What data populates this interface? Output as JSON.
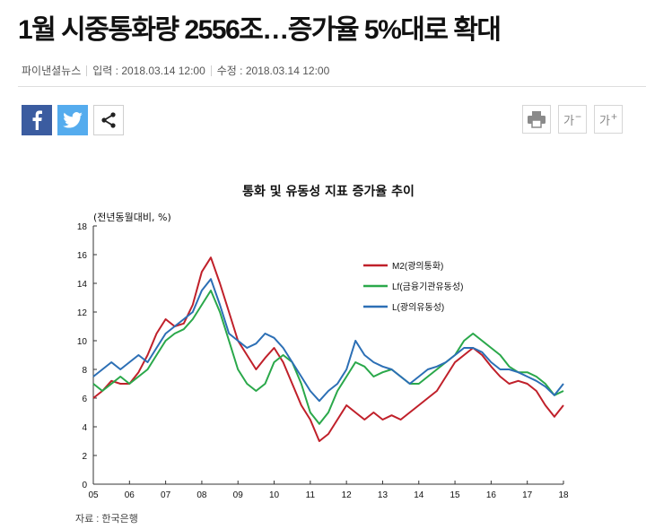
{
  "article": {
    "title": "1월 시중통화량 2556조…증가율 5%대로 확대",
    "publisher": "파이낸셜뉴스",
    "published": "입력 : 2018.03.14 12:00",
    "modified": "수정 : 2018.03.14 12:00"
  },
  "share": {
    "facebook_icon": "facebook-icon",
    "twitter_icon": "twitter-icon",
    "share_icon": "share-icon"
  },
  "tools": {
    "print_icon": "printer-icon",
    "font_smaller_label": "가",
    "font_smaller_sign": "−",
    "font_larger_label": "가",
    "font_larger_sign": "+"
  },
  "source_label": "자료 : 한국은행",
  "chart_data": {
    "type": "line",
    "title": "통화 및 유동성 지표 증가율 추이",
    "ylabel": "(전년동월대비, %)",
    "ylim": [
      0,
      18
    ],
    "yticks": [
      0,
      2,
      4,
      6,
      8,
      10,
      12,
      14,
      16,
      18
    ],
    "xticks": [
      "05",
      "06",
      "07",
      "08",
      "09",
      "10",
      "11",
      "12",
      "13",
      "14",
      "15",
      "16",
      "17",
      "18"
    ],
    "xlim": [
      2005.0,
      2018.0
    ],
    "grid": false,
    "legend_position": "top-right",
    "series": [
      {
        "name": "M2(광의통화)",
        "color": "#c0202a",
        "x": [
          2005.0,
          2005.25,
          2005.5,
          2005.75,
          2006.0,
          2006.25,
          2006.5,
          2006.75,
          2007.0,
          2007.25,
          2007.5,
          2007.75,
          2008.0,
          2008.25,
          2008.5,
          2008.75,
          2009.0,
          2009.25,
          2009.5,
          2009.75,
          2010.0,
          2010.25,
          2010.5,
          2010.75,
          2011.0,
          2011.25,
          2011.5,
          2011.75,
          2012.0,
          2012.25,
          2012.5,
          2012.75,
          2013.0,
          2013.25,
          2013.5,
          2013.75,
          2014.0,
          2014.25,
          2014.5,
          2014.75,
          2015.0,
          2015.25,
          2015.5,
          2015.75,
          2016.0,
          2016.25,
          2016.5,
          2016.75,
          2017.0,
          2017.25,
          2017.5,
          2017.75,
          2018.0
        ],
        "values": [
          6.0,
          6.5,
          7.2,
          7.0,
          7.0,
          7.8,
          9.0,
          10.5,
          11.5,
          11.0,
          11.2,
          12.5,
          14.8,
          15.8,
          14.0,
          12.0,
          10.0,
          9.0,
          8.0,
          8.8,
          9.5,
          8.5,
          7.0,
          5.5,
          4.5,
          3.0,
          3.5,
          4.5,
          5.5,
          5.0,
          4.5,
          5.0,
          4.5,
          4.8,
          4.5,
          5.0,
          5.5,
          6.0,
          6.5,
          7.5,
          8.5,
          9.0,
          9.5,
          9.0,
          8.2,
          7.5,
          7.0,
          7.2,
          7.0,
          6.5,
          5.5,
          4.7,
          5.5
        ]
      },
      {
        "name": "Lf(금융기관유동성)",
        "color": "#2aa84a",
        "x": [
          2005.0,
          2005.25,
          2005.5,
          2005.75,
          2006.0,
          2006.25,
          2006.5,
          2006.75,
          2007.0,
          2007.25,
          2007.5,
          2007.75,
          2008.0,
          2008.25,
          2008.5,
          2008.75,
          2009.0,
          2009.25,
          2009.5,
          2009.75,
          2010.0,
          2010.25,
          2010.5,
          2010.75,
          2011.0,
          2011.25,
          2011.5,
          2011.75,
          2012.0,
          2012.25,
          2012.5,
          2012.75,
          2013.0,
          2013.25,
          2013.5,
          2013.75,
          2014.0,
          2014.25,
          2014.5,
          2014.75,
          2015.0,
          2015.25,
          2015.5,
          2015.75,
          2016.0,
          2016.25,
          2016.5,
          2016.75,
          2017.0,
          2017.25,
          2017.5,
          2017.75,
          2018.0
        ],
        "values": [
          7.0,
          6.5,
          7.0,
          7.5,
          7.0,
          7.5,
          8.0,
          9.0,
          10.0,
          10.5,
          10.8,
          11.5,
          12.5,
          13.5,
          12.0,
          10.0,
          8.0,
          7.0,
          6.5,
          7.0,
          8.5,
          9.0,
          8.5,
          7.0,
          5.0,
          4.2,
          5.0,
          6.5,
          7.5,
          8.5,
          8.2,
          7.5,
          7.8,
          8.0,
          7.5,
          7.0,
          7.0,
          7.5,
          8.0,
          8.5,
          9.0,
          10.0,
          10.5,
          10.0,
          9.5,
          9.0,
          8.2,
          7.8,
          7.8,
          7.5,
          7.0,
          6.2,
          6.5
        ]
      },
      {
        "name": "L(광의유동성)",
        "color": "#2c6fb5",
        "x": [
          2005.0,
          2005.25,
          2005.5,
          2005.75,
          2006.0,
          2006.25,
          2006.5,
          2006.75,
          2007.0,
          2007.25,
          2007.5,
          2007.75,
          2008.0,
          2008.25,
          2008.5,
          2008.75,
          2009.0,
          2009.25,
          2009.5,
          2009.75,
          2010.0,
          2010.25,
          2010.5,
          2010.75,
          2011.0,
          2011.25,
          2011.5,
          2011.75,
          2012.0,
          2012.25,
          2012.5,
          2012.75,
          2013.0,
          2013.25,
          2013.5,
          2013.75,
          2014.0,
          2014.25,
          2014.5,
          2014.75,
          2015.0,
          2015.25,
          2015.5,
          2015.75,
          2016.0,
          2016.25,
          2016.5,
          2016.75,
          2017.0,
          2017.25,
          2017.5,
          2017.75,
          2018.0
        ],
        "values": [
          7.5,
          8.0,
          8.5,
          8.0,
          8.5,
          9.0,
          8.5,
          9.5,
          10.5,
          11.0,
          11.5,
          12.0,
          13.5,
          14.3,
          12.5,
          10.5,
          10.0,
          9.5,
          9.8,
          10.5,
          10.2,
          9.5,
          8.5,
          7.5,
          6.5,
          5.8,
          6.5,
          7.0,
          8.0,
          10.0,
          9.0,
          8.5,
          8.2,
          8.0,
          7.5,
          7.0,
          7.5,
          8.0,
          8.2,
          8.5,
          9.0,
          9.5,
          9.5,
          9.2,
          8.5,
          8.0,
          8.0,
          7.8,
          7.5,
          7.2,
          6.8,
          6.2,
          7.0
        ]
      }
    ]
  }
}
